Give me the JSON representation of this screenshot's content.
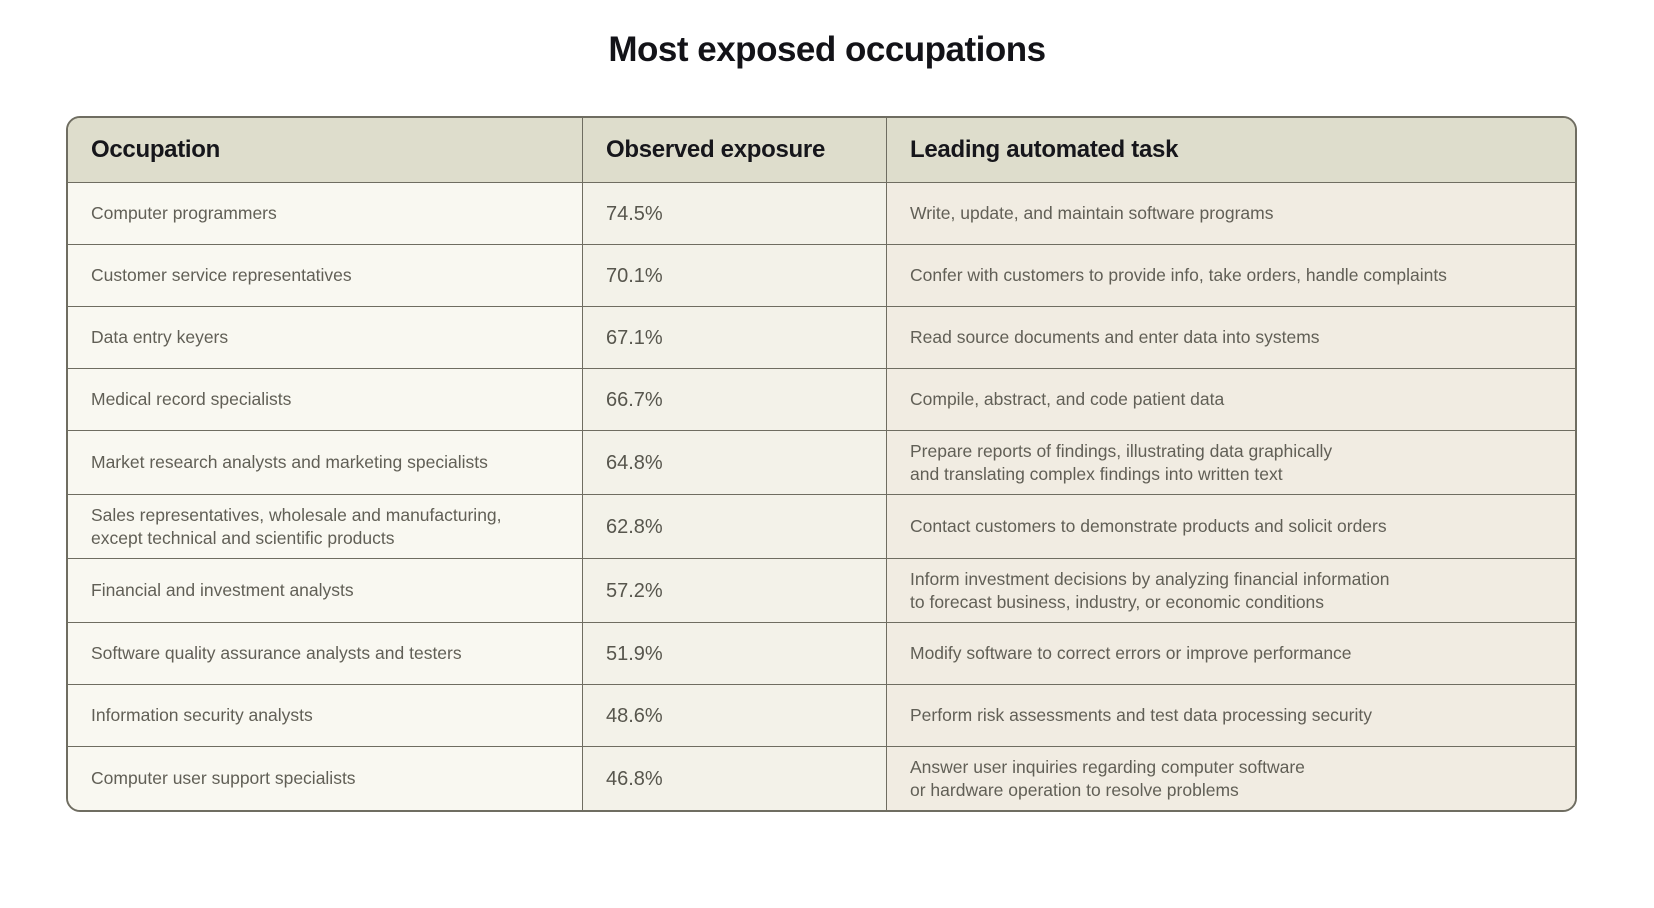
{
  "page": {
    "title": "Most exposed occupations"
  },
  "colors": {
    "page_background": "#ffffff",
    "table_border": "#6f6d61",
    "header_background": "#deddcc",
    "occupation_column_background": "#f9f8f1",
    "exposure_column_background": "#f3f2e9",
    "task_column_background": "#f1ece2",
    "header_text": "#16161b",
    "body_text": "#615f56"
  },
  "chart_data": {
    "type": "table",
    "title": "Most exposed occupations",
    "columns": [
      "Occupation",
      "Observed exposure",
      "Leading automated task"
    ],
    "exposure_values_pct": [
      74.5,
      70.1,
      67.1,
      66.7,
      64.8,
      62.8,
      57.2,
      51.9,
      48.6,
      46.8
    ],
    "rows": [
      {
        "occupation": "Computer programmers",
        "exposure": "74.5%",
        "task": "Write, update, and maintain software programs"
      },
      {
        "occupation": "Customer service representatives",
        "exposure": "70.1%",
        "task": "Confer with customers to provide info, take orders, handle complaints"
      },
      {
        "occupation": "Data entry keyers",
        "exposure": "67.1%",
        "task": "Read source documents and enter data into systems"
      },
      {
        "occupation": "Medical record specialists",
        "exposure": "66.7%",
        "task": "Compile, abstract, and code patient data"
      },
      {
        "occupation": "Market research analysts and marketing specialists",
        "exposure": "64.8%",
        "task": "Prepare reports of findings, illustrating data graphically\nand translating complex findings into written text"
      },
      {
        "occupation": "Sales representatives, wholesale and manufacturing,\nexcept technical and scientific products",
        "exposure": "62.8%",
        "task": "Contact customers to demonstrate products and solicit orders"
      },
      {
        "occupation": "Financial and investment analysts",
        "exposure": "57.2%",
        "task": "Inform investment decisions by analyzing financial information\nto forecast business, industry, or economic conditions"
      },
      {
        "occupation": "Software quality assurance analysts and testers",
        "exposure": "51.9%",
        "task": "Modify software to correct errors or improve performance"
      },
      {
        "occupation": "Information security analysts",
        "exposure": "48.6%",
        "task": "Perform risk assessments and test data processing security"
      },
      {
        "occupation": "Computer user support specialists",
        "exposure": "46.8%",
        "task": "Answer user inquiries regarding computer software\nor hardware operation to resolve problems"
      }
    ]
  }
}
